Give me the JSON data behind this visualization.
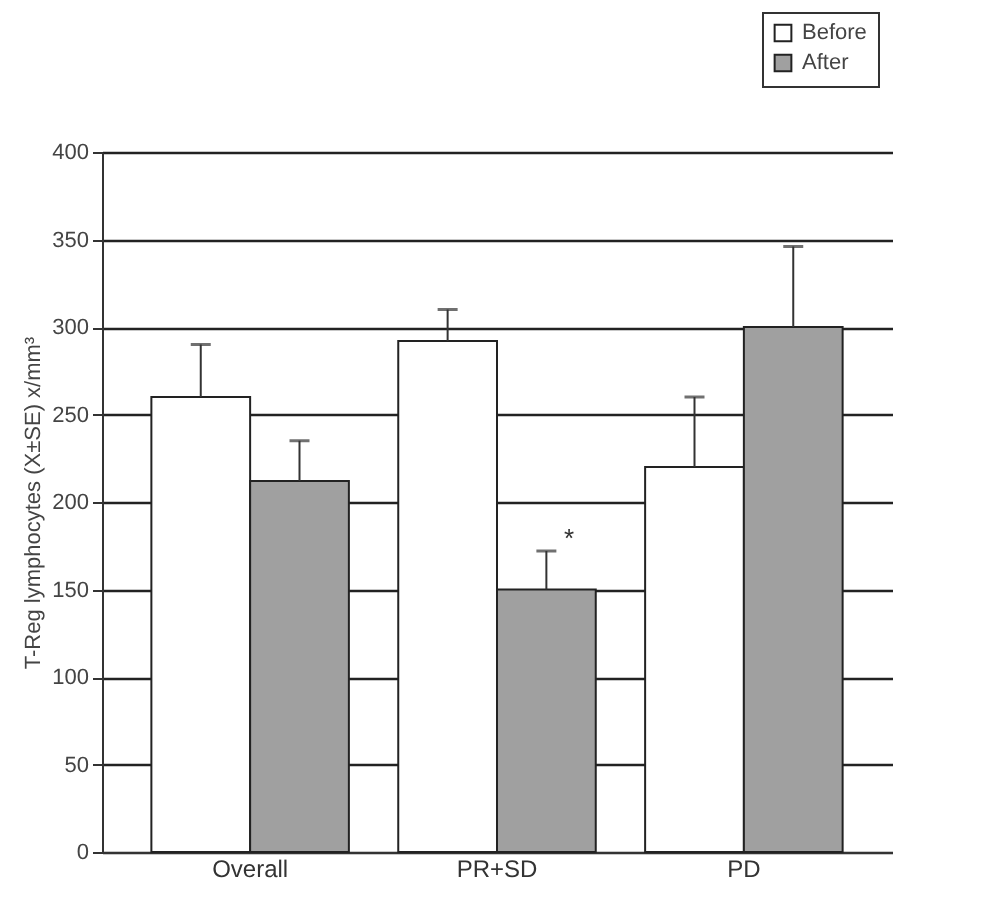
{
  "chart_data": {
    "type": "bar",
    "ylabel": "T-Reg lymphocytes (X±SE) x/mm³",
    "categories": [
      "Overall",
      "PR+SD",
      "PD"
    ],
    "series": [
      {
        "name": "Before",
        "color": "#ffffff",
        "values": [
          260,
          292,
          220
        ],
        "errors": [
          [
            260,
            290
          ],
          [
            292,
            310
          ],
          [
            220,
            260
          ]
        ]
      },
      {
        "name": "After",
        "color": "#a0a0a0",
        "values": [
          212,
          150,
          300
        ],
        "errors": [
          [
            212,
            235
          ],
          [
            150,
            172
          ],
          [
            300,
            346
          ]
        ]
      }
    ],
    "ylim": [
      0,
      400
    ],
    "yticks": [
      0,
      50,
      100,
      150,
      200,
      250,
      300,
      350,
      400
    ],
    "grid": "y",
    "legend": "top right",
    "annotations": [
      {
        "text": "*",
        "x": "PR+SD",
        "y": 179
      }
    ]
  }
}
